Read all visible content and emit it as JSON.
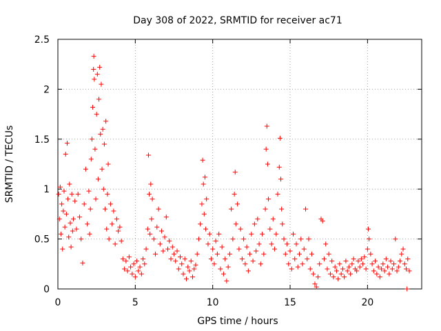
{
  "chart_data": {
    "type": "scatter",
    "title": "Day 308 of 2022, SRMTID for receiver ac71",
    "xlabel": "GPS time / hours",
    "ylabel": "SRMTID / TECUs",
    "xlim": [
      0,
      23.5
    ],
    "ylim": [
      0,
      2.5
    ],
    "xticks": [
      0,
      5,
      10,
      15,
      20
    ],
    "xtick_labels": [
      "0",
      "5",
      "10",
      "15",
      "20"
    ],
    "yticks": [
      0,
      0.5,
      1,
      1.5,
      2,
      2.5
    ],
    "ytick_labels": [
      "0",
      "0.5",
      "1",
      "1.5",
      "2",
      "2.5"
    ],
    "grid": true,
    "marker": "+",
    "marker_color": "#ff0000",
    "series": [
      {
        "name": "SRMTID",
        "points": [
          [
            0.05,
            0.95
          ],
          [
            0.1,
            0.7
          ],
          [
            0.15,
            1.02
          ],
          [
            0.2,
            0.55
          ],
          [
            0.25,
            0.85
          ],
          [
            0.3,
            0.4
          ],
          [
            0.35,
            0.78
          ],
          [
            0.4,
            0.98
          ],
          [
            0.45,
            0.62
          ],
          [
            0.5,
            1.35
          ],
          [
            0.55,
            0.75
          ],
          [
            0.6,
            1.46
          ],
          [
            0.65,
            0.9
          ],
          [
            0.7,
            0.52
          ],
          [
            0.75,
            1.05
          ],
          [
            0.8,
            0.66
          ],
          [
            0.85,
            0.42
          ],
          [
            0.9,
            0.95
          ],
          [
            0.95,
            0.58
          ],
          [
            1.0,
            0.7
          ],
          [
            1.1,
            0.88
          ],
          [
            1.2,
            0.6
          ],
          [
            1.3,
            0.95
          ],
          [
            1.4,
            0.72
          ],
          [
            1.5,
            0.5
          ],
          [
            1.6,
            0.26
          ],
          [
            1.7,
            0.85
          ],
          [
            1.8,
            1.2
          ],
          [
            1.9,
            0.65
          ],
          [
            2.0,
            0.98
          ],
          [
            2.05,
            0.55
          ],
          [
            2.1,
            0.8
          ],
          [
            2.15,
            1.3
          ],
          [
            2.2,
            1.5
          ],
          [
            2.25,
            1.82
          ],
          [
            2.3,
            2.2
          ],
          [
            2.32,
            2.33
          ],
          [
            2.35,
            2.1
          ],
          [
            2.4,
            1.4
          ],
          [
            2.45,
            0.9
          ],
          [
            2.5,
            1.75
          ],
          [
            2.55,
            2.15
          ],
          [
            2.6,
            1.1
          ],
          [
            2.65,
            1.9
          ],
          [
            2.7,
            2.22
          ],
          [
            2.75,
            1.55
          ],
          [
            2.8,
            2.05
          ],
          [
            2.85,
            1.2
          ],
          [
            2.9,
            1.6
          ],
          [
            2.95,
            1.0
          ],
          [
            3.0,
            1.45
          ],
          [
            3.05,
            0.8
          ],
          [
            3.1,
            1.68
          ],
          [
            3.15,
            0.6
          ],
          [
            3.2,
            0.95
          ],
          [
            3.25,
            1.25
          ],
          [
            3.3,
            0.5
          ],
          [
            3.4,
            0.85
          ],
          [
            3.5,
            0.65
          ],
          [
            3.6,
            0.78
          ],
          [
            3.7,
            0.45
          ],
          [
            3.8,
            0.7
          ],
          [
            3.9,
            0.58
          ],
          [
            4.0,
            0.62
          ],
          [
            4.1,
            0.48
          ],
          [
            4.2,
            0.3
          ],
          [
            4.3,
            0.2
          ],
          [
            4.4,
            0.28
          ],
          [
            4.5,
            0.18
          ],
          [
            4.6,
            0.32
          ],
          [
            4.7,
            0.22
          ],
          [
            4.8,
            0.15
          ],
          [
            4.9,
            0.25
          ],
          [
            5.0,
            0.12
          ],
          [
            5.1,
            0.28
          ],
          [
            5.2,
            0.18
          ],
          [
            5.3,
            0.22
          ],
          [
            5.4,
            0.15
          ],
          [
            5.5,
            0.3
          ],
          [
            5.6,
            0.25
          ],
          [
            5.7,
            0.4
          ],
          [
            5.8,
            0.6
          ],
          [
            5.85,
            1.34
          ],
          [
            5.9,
            0.95
          ],
          [
            5.95,
            0.55
          ],
          [
            6.0,
            1.05
          ],
          [
            6.05,
            0.7
          ],
          [
            6.1,
            0.9
          ],
          [
            6.2,
            0.5
          ],
          [
            6.3,
            0.35
          ],
          [
            6.4,
            0.62
          ],
          [
            6.5,
            0.8
          ],
          [
            6.6,
            0.45
          ],
          [
            6.7,
            0.58
          ],
          [
            6.8,
            0.38
          ],
          [
            6.9,
            0.52
          ],
          [
            7.0,
            0.72
          ],
          [
            7.1,
            0.4
          ],
          [
            7.2,
            0.48
          ],
          [
            7.3,
            0.3
          ],
          [
            7.4,
            0.42
          ],
          [
            7.5,
            0.35
          ],
          [
            7.6,
            0.28
          ],
          [
            7.7,
            0.38
          ],
          [
            7.8,
            0.2
          ],
          [
            7.9,
            0.32
          ],
          [
            8.0,
            0.25
          ],
          [
            8.1,
            0.15
          ],
          [
            8.2,
            0.3
          ],
          [
            8.3,
            0.1
          ],
          [
            8.4,
            0.22
          ],
          [
            8.5,
            0.18
          ],
          [
            8.6,
            0.28
          ],
          [
            8.7,
            0.12
          ],
          [
            8.8,
            0.2
          ],
          [
            8.9,
            0.24
          ],
          [
            9.0,
            0.35
          ],
          [
            9.1,
            0.5
          ],
          [
            9.2,
            0.65
          ],
          [
            9.3,
            0.85
          ],
          [
            9.35,
            1.29
          ],
          [
            9.4,
            1.05
          ],
          [
            9.45,
            0.75
          ],
          [
            9.5,
            1.12
          ],
          [
            9.55,
            0.6
          ],
          [
            9.6,
            0.9
          ],
          [
            9.7,
            0.45
          ],
          [
            9.8,
            0.55
          ],
          [
            9.9,
            0.3
          ],
          [
            10.0,
            0.4
          ],
          [
            10.1,
            0.25
          ],
          [
            10.2,
            0.48
          ],
          [
            10.3,
            0.35
          ],
          [
            10.4,
            0.55
          ],
          [
            10.5,
            0.2
          ],
          [
            10.6,
            0.42
          ],
          [
            10.7,
            0.15
          ],
          [
            10.8,
            0.3
          ],
          [
            10.9,
            0.08
          ],
          [
            11.0,
            0.22
          ],
          [
            11.1,
            0.35
          ],
          [
            11.2,
            0.8
          ],
          [
            11.3,
            0.5
          ],
          [
            11.4,
            0.95
          ],
          [
            11.45,
            1.17
          ],
          [
            11.5,
            0.65
          ],
          [
            11.6,
            0.85
          ],
          [
            11.7,
            0.4
          ],
          [
            11.8,
            0.6
          ],
          [
            11.9,
            0.3
          ],
          [
            12.0,
            0.5
          ],
          [
            12.1,
            0.25
          ],
          [
            12.2,
            0.42
          ],
          [
            12.3,
            0.18
          ],
          [
            12.4,
            0.35
          ],
          [
            12.5,
            0.55
          ],
          [
            12.6,
            0.28
          ],
          [
            12.7,
            0.65
          ],
          [
            12.8,
            0.38
          ],
          [
            12.9,
            0.7
          ],
          [
            13.0,
            0.45
          ],
          [
            13.1,
            0.25
          ],
          [
            13.2,
            0.55
          ],
          [
            13.3,
            0.35
          ],
          [
            13.4,
            0.8
          ],
          [
            13.45,
            1.4
          ],
          [
            13.5,
            1.63
          ],
          [
            13.55,
            1.25
          ],
          [
            13.6,
            0.9
          ],
          [
            13.7,
            0.6
          ],
          [
            13.8,
            0.45
          ],
          [
            13.9,
            0.7
          ],
          [
            14.0,
            0.4
          ],
          [
            14.1,
            0.55
          ],
          [
            14.2,
            0.95
          ],
          [
            14.3,
            1.22
          ],
          [
            14.35,
            1.51
          ],
          [
            14.4,
            1.1
          ],
          [
            14.45,
            0.8
          ],
          [
            14.5,
            0.65
          ],
          [
            14.6,
            0.5
          ],
          [
            14.7,
            0.35
          ],
          [
            14.8,
            0.45
          ],
          [
            14.9,
            0.25
          ],
          [
            15.0,
            0.38
          ],
          [
            15.1,
            0.2
          ],
          [
            15.2,
            0.55
          ],
          [
            15.3,
            0.3
          ],
          [
            15.4,
            0.45
          ],
          [
            15.5,
            0.22
          ],
          [
            15.6,
            0.35
          ],
          [
            15.7,
            0.5
          ],
          [
            15.8,
            0.25
          ],
          [
            15.9,
            0.4
          ],
          [
            16.0,
            0.8
          ],
          [
            16.1,
            0.3
          ],
          [
            16.2,
            0.5
          ],
          [
            16.3,
            0.2
          ],
          [
            16.4,
            0.35
          ],
          [
            16.5,
            0.15
          ],
          [
            16.6,
            0.05
          ],
          [
            16.7,
            0.02
          ],
          [
            16.8,
            0.12
          ],
          [
            16.9,
            0.25
          ],
          [
            17.0,
            0.7
          ],
          [
            17.1,
            0.68
          ],
          [
            17.2,
            0.3
          ],
          [
            17.3,
            0.45
          ],
          [
            17.4,
            0.2
          ],
          [
            17.5,
            0.35
          ],
          [
            17.6,
            0.15
          ],
          [
            17.7,
            0.28
          ],
          [
            17.8,
            0.12
          ],
          [
            17.9,
            0.22
          ],
          [
            18.0,
            0.18
          ],
          [
            18.1,
            0.1
          ],
          [
            18.2,
            0.25
          ],
          [
            18.3,
            0.15
          ],
          [
            18.4,
            0.2
          ],
          [
            18.5,
            0.12
          ],
          [
            18.6,
            0.28
          ],
          [
            18.7,
            0.18
          ],
          [
            18.8,
            0.22
          ],
          [
            18.9,
            0.15
          ],
          [
            19.0,
            0.25
          ],
          [
            19.1,
            0.3
          ],
          [
            19.2,
            0.2
          ],
          [
            19.3,
            0.18
          ],
          [
            19.4,
            0.28
          ],
          [
            19.5,
            0.22
          ],
          [
            19.6,
            0.3
          ],
          [
            19.7,
            0.25
          ],
          [
            19.8,
            0.32
          ],
          [
            19.9,
            0.2
          ],
          [
            20.0,
            0.4
          ],
          [
            20.05,
            0.6
          ],
          [
            20.1,
            0.5
          ],
          [
            20.2,
            0.35
          ],
          [
            20.3,
            0.25
          ],
          [
            20.4,
            0.18
          ],
          [
            20.5,
            0.28
          ],
          [
            20.6,
            0.15
          ],
          [
            20.7,
            0.22
          ],
          [
            20.8,
            0.12
          ],
          [
            20.9,
            0.2
          ],
          [
            21.0,
            0.25
          ],
          [
            21.1,
            0.18
          ],
          [
            21.2,
            0.3
          ],
          [
            21.3,
            0.22
          ],
          [
            21.4,
            0.15
          ],
          [
            21.5,
            0.28
          ],
          [
            21.6,
            0.2
          ],
          [
            21.7,
            0.25
          ],
          [
            21.8,
            0.5
          ],
          [
            21.9,
            0.18
          ],
          [
            22.0,
            0.22
          ],
          [
            22.1,
            0.28
          ],
          [
            22.2,
            0.35
          ],
          [
            22.3,
            0.4
          ],
          [
            22.4,
            0.25
          ],
          [
            22.5,
            0.2
          ],
          [
            22.55,
            0.0
          ],
          [
            22.6,
            0.3
          ],
          [
            22.7,
            0.18
          ]
        ]
      }
    ]
  }
}
